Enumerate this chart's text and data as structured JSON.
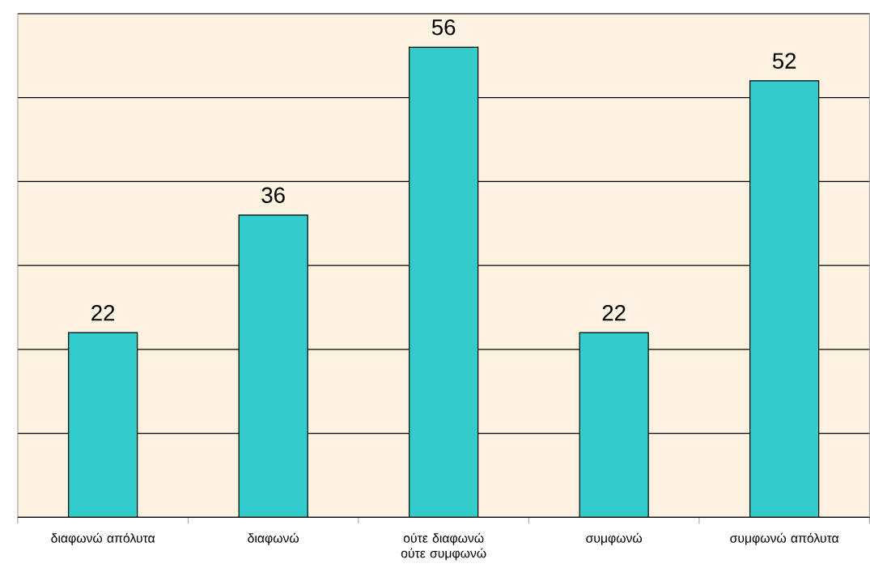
{
  "chart_data": {
    "type": "bar",
    "categories": [
      "διαφωνώ απόλυτα",
      "διαφωνώ",
      "ούτε διαφωνώ ούτε συμφωνώ",
      "συμφωνώ",
      "συμφωνώ απόλυτα"
    ],
    "values": [
      22,
      36,
      56,
      22,
      52
    ],
    "color": "#33cccc",
    "ylim": [
      0,
      60
    ],
    "yticks": [
      {
        "value": 0,
        "label": null
      },
      {
        "value": 10,
        "label": null
      },
      {
        "value": 20,
        "label": null
      },
      {
        "value": 30,
        "label": null
      },
      {
        "value": 40,
        "label": null
      },
      {
        "value": 50,
        "label": null
      },
      {
        "value": 60,
        "label": null
      }
    ],
    "grid": "y",
    "tick_labels": "x",
    "data_labels": true
  }
}
